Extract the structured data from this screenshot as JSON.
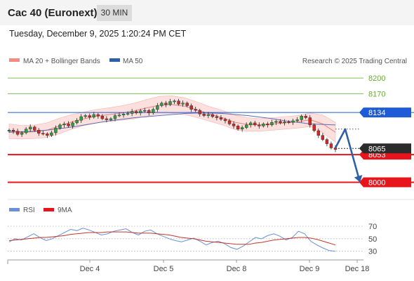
{
  "header": {
    "title": "Cac 40 (Euronext)",
    "timeframe": "30 MIN"
  },
  "datetime": "Tuesday, December 9, 2025 1:20:24 PM CET",
  "legend": {
    "bollinger": "MA 20 + Bollinger Bands",
    "ma50": "MA 50",
    "copyright": "Research © 2025 Trading Central"
  },
  "rsi_legend": {
    "rsi": "RSI",
    "ma": "9MA"
  },
  "colors": {
    "support": "#e8141b",
    "resistance_green": "#7bbf4f",
    "resistance_blue": "#1e5bd6",
    "up_candle": "#2f9e44",
    "down_candle": "#c92a2a",
    "bollinger_fill": "#fbd5d3",
    "ma50": "#5b6fb3",
    "forecast_arrow": "#2f5fa7",
    "rsi": "#6a8fdc",
    "rsi_ma": "#c0392b"
  },
  "chart_data": [
    {
      "type": "candlestick",
      "title": "",
      "x_tick_labels": [
        "Dec 4",
        "Dec 5",
        "Dec 8",
        "Dec 9",
        "Dec 18"
      ],
      "ylim": [
        7975,
        8215
      ],
      "levels": [
        {
          "value": 8200,
          "label": "8200",
          "kind": "resistance",
          "color": "#7bbf4f"
        },
        {
          "value": 8170,
          "label": "8170",
          "kind": "resistance",
          "color": "#7bbf4f"
        },
        {
          "value": 8134,
          "label": "8134",
          "kind": "pivot",
          "color": "#1e5bd6"
        },
        {
          "value": 8053,
          "label": "8053",
          "kind": "support",
          "color": "#e8141b"
        },
        {
          "value": 8000,
          "label": "8000",
          "kind": "support",
          "color": "#e8141b"
        }
      ],
      "last_price": {
        "value": 8065,
        "label": "8065"
      },
      "close_series": [
        8100,
        8098,
        8092,
        8095,
        8102,
        8106,
        8100,
        8094,
        8093,
        8090,
        8095,
        8104,
        8110,
        8112,
        8108,
        8114,
        8119,
        8126,
        8128,
        8125,
        8130,
        8127,
        8122,
        8120,
        8122,
        8128,
        8129,
        8131,
        8132,
        8136,
        8133,
        8137,
        8138,
        8133,
        8140,
        8147,
        8152,
        8149,
        8155,
        8156,
        8150,
        8152,
        8147,
        8140,
        8138,
        8131,
        8128,
        8130,
        8126,
        8124,
        8121,
        8118,
        8112,
        8108,
        8102,
        8105,
        8110,
        8114,
        8110,
        8108,
        8112,
        8110,
        8115,
        8117,
        8114,
        8116,
        8115,
        8118,
        8120,
        8127,
        8124,
        8110,
        8099,
        8090,
        8082,
        8074,
        8066,
        8063
      ],
      "forecast": [
        {
          "step": 0,
          "value": 8066
        },
        {
          "step": 4,
          "value": 8102
        },
        {
          "step": 10,
          "value": 8000
        }
      ],
      "ma50_series": [
        8096,
        8097,
        8098,
        8100,
        8103,
        8106,
        8110,
        8114,
        8118,
        8121,
        8124,
        8126,
        8128,
        8130,
        8132,
        8133,
        8133,
        8132,
        8130,
        8128,
        8125,
        8122,
        8118,
        8115,
        8112,
        8111,
        8110
      ],
      "bollinger_mid": [
        8098,
        8096,
        8097,
        8100,
        8108,
        8116,
        8122,
        8127,
        8130,
        8133,
        8137,
        8143,
        8148,
        8149,
        8146,
        8139,
        8131,
        8124,
        8115,
        8111,
        8110,
        8112,
        8114,
        8116,
        8120,
        8112,
        8096
      ],
      "bollinger_width": [
        14,
        13,
        13,
        14,
        15,
        14,
        13,
        13,
        13,
        14,
        15,
        16,
        17,
        17,
        16,
        15,
        14,
        14,
        14,
        13,
        12,
        12,
        12,
        12,
        13,
        17,
        19
      ]
    },
    {
      "type": "line",
      "title": "",
      "series_names": [
        "RSI",
        "9MA"
      ],
      "ylim": [
        25,
        78
      ],
      "y_ticks": [
        70,
        50,
        30
      ],
      "rsi": [
        45,
        50,
        48,
        53,
        58,
        52,
        47,
        50,
        55,
        60,
        65,
        63,
        67,
        64,
        60,
        56,
        58,
        62,
        64,
        66,
        60,
        56,
        62,
        64,
        58,
        54,
        50,
        47,
        45,
        48,
        51,
        46,
        40,
        44,
        46,
        42,
        36,
        33,
        38,
        45,
        52,
        50,
        55,
        58,
        54,
        48,
        52,
        62,
        58,
        46,
        40,
        35,
        31,
        30
      ],
      "rsi_ma": [
        47,
        48,
        49,
        50,
        51,
        52,
        52,
        53,
        54,
        55,
        57,
        58,
        59,
        60,
        60,
        60,
        61,
        61,
        61,
        61,
        60,
        59,
        59,
        59,
        58,
        57,
        56,
        54,
        52,
        51,
        50,
        48,
        46,
        45,
        44,
        43,
        42,
        41,
        41,
        41,
        43,
        44,
        46,
        48,
        49,
        50,
        51,
        52,
        52,
        51,
        49,
        46,
        43,
        40
      ]
    }
  ]
}
